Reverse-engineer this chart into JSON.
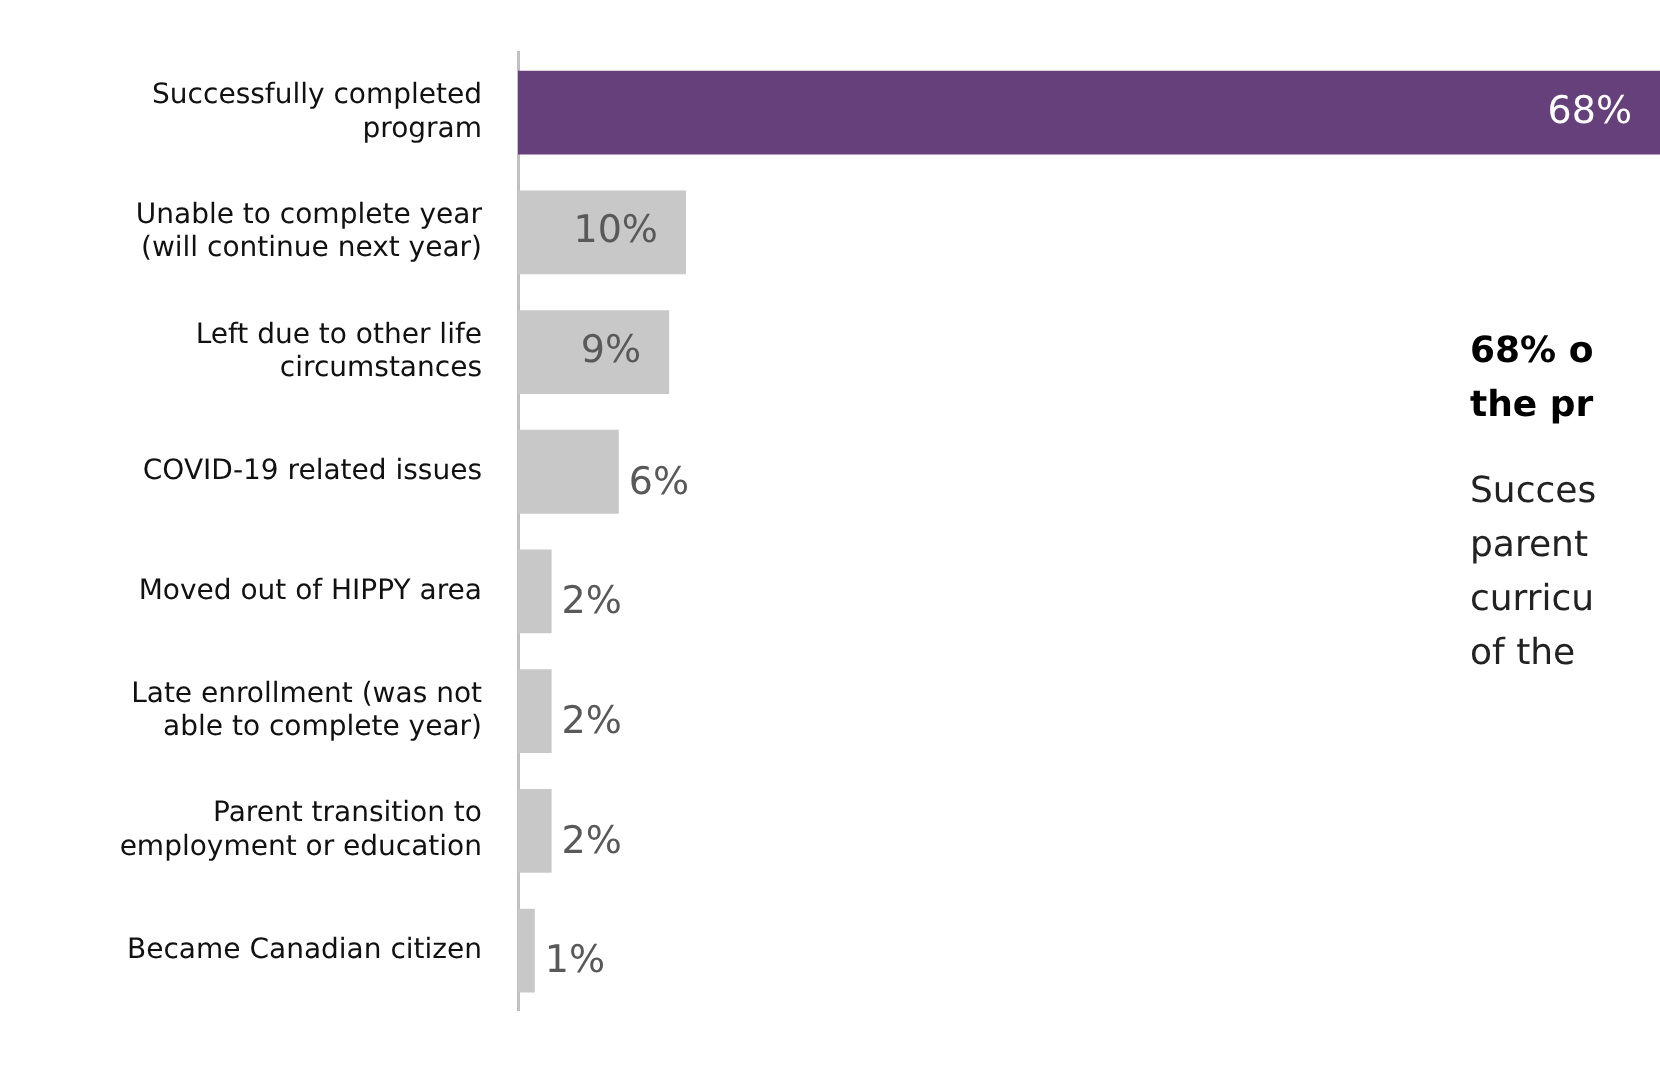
{
  "chart_data": {
    "type": "bar",
    "orientation": "horizontal",
    "categories": [
      "Successfully completed program",
      "Unable to complete year (will continue next year)",
      "Left due to other life circumstances",
      "COVID-19 related issues",
      "Moved out of HIPPY area",
      "Late enrollment (was not able to complete year)",
      "Parent transition to employment or education",
      "Became Canadian citizen"
    ],
    "values": [
      68,
      10,
      9,
      6,
      2,
      2,
      2,
      1
    ],
    "colors": [
      "#65407a",
      "#c8c8c8",
      "#c8c8c8",
      "#c8c8c8",
      "#c8c8c8",
      "#c8c8c8",
      "#c8c8c8",
      "#c8c8c8"
    ],
    "value_labels": [
      "68%",
      "10%",
      "9%",
      "6%",
      "2%",
      "2%",
      "2%",
      "1%"
    ],
    "tick_labels": "y",
    "grid": false,
    "legend": false,
    "annotations": [
      "68% o",
      "the pr",
      "Succes",
      "parent",
      "curricu",
      "of the"
    ]
  }
}
